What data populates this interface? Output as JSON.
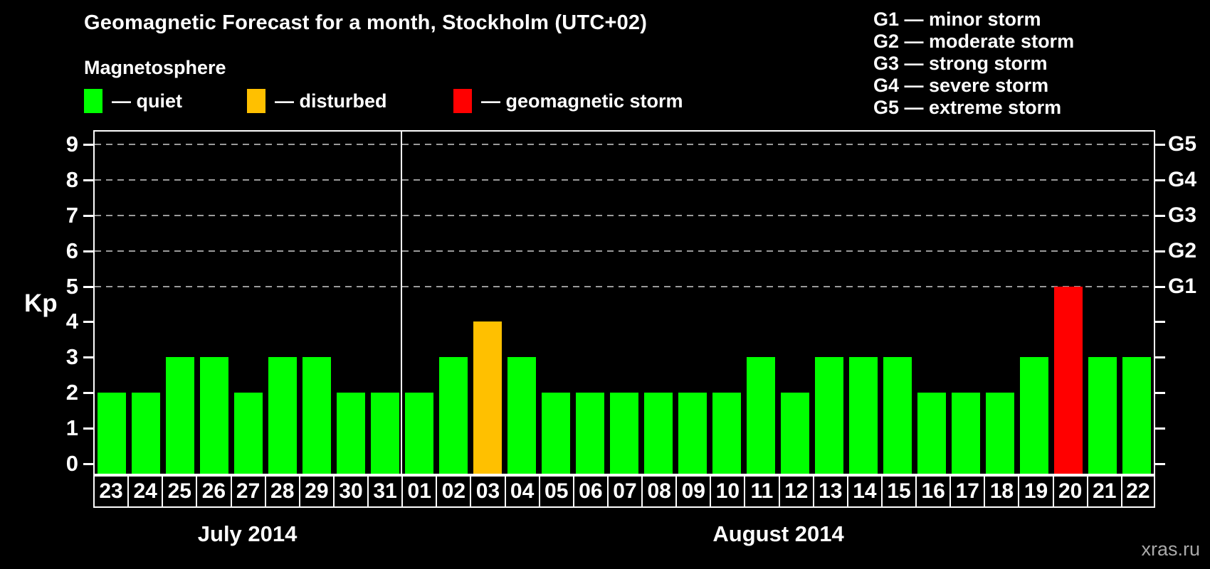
{
  "header": {
    "title": "Geomagnetic Forecast for a month, Stockholm (UTC+02)"
  },
  "magnetosphere_legend": {
    "title": "Magnetosphere",
    "items": [
      {
        "key": "quiet",
        "label": "— quiet",
        "color": "#00ff00"
      },
      {
        "key": "disturbed",
        "label": "— disturbed",
        "color": "#ffc000"
      },
      {
        "key": "storm",
        "label": "— geomagnetic storm",
        "color": "#ff0000"
      }
    ]
  },
  "storm_scale_legend": {
    "lines": [
      "G1 — minor storm",
      "G2 — moderate storm",
      "G3 — strong storm",
      "G4 — severe storm",
      "G5 — extreme storm"
    ]
  },
  "watermark": "xras.ru",
  "chart_data": {
    "type": "bar",
    "title": "Geomagnetic Forecast for a month, Stockholm (UTC+02)",
    "ylabel": "Kp",
    "ylim": [
      0,
      9
    ],
    "yticks": [
      0,
      1,
      2,
      3,
      4,
      5,
      6,
      7,
      8,
      9
    ],
    "grid": "horizontal dashed lines at storm levels only",
    "gridline_levels": [
      5,
      6,
      7,
      8,
      9
    ],
    "right_axis_labels": [
      {
        "kp": 5,
        "label": "G1"
      },
      {
        "kp": 6,
        "label": "G2"
      },
      {
        "kp": 7,
        "label": "G3"
      },
      {
        "kp": 8,
        "label": "G4"
      },
      {
        "kp": 9,
        "label": "G5"
      }
    ],
    "months": [
      {
        "label": "July 2014",
        "days": [
          "23",
          "24",
          "25",
          "26",
          "27",
          "28",
          "29",
          "30",
          "31"
        ],
        "kp_values": [
          2,
          2,
          3,
          3,
          2,
          3,
          3,
          2,
          2
        ],
        "levels": [
          "quiet",
          "quiet",
          "quiet",
          "quiet",
          "quiet",
          "quiet",
          "quiet",
          "quiet",
          "quiet"
        ]
      },
      {
        "label": "August 2014",
        "days": [
          "01",
          "02",
          "03",
          "04",
          "05",
          "06",
          "07",
          "08",
          "09",
          "10",
          "11",
          "12",
          "13",
          "14",
          "15",
          "16",
          "17",
          "18",
          "19",
          "20",
          "21",
          "22"
        ],
        "kp_values": [
          2,
          3,
          4,
          3,
          2,
          2,
          2,
          2,
          2,
          2,
          3,
          2,
          3,
          3,
          3,
          2,
          2,
          2,
          3,
          5,
          3,
          3
        ],
        "levels": [
          "quiet",
          "quiet",
          "disturbed",
          "quiet",
          "quiet",
          "quiet",
          "quiet",
          "quiet",
          "quiet",
          "quiet",
          "quiet",
          "quiet",
          "quiet",
          "quiet",
          "quiet",
          "quiet",
          "quiet",
          "quiet",
          "quiet",
          "storm",
          "quiet",
          "quiet"
        ]
      }
    ]
  }
}
